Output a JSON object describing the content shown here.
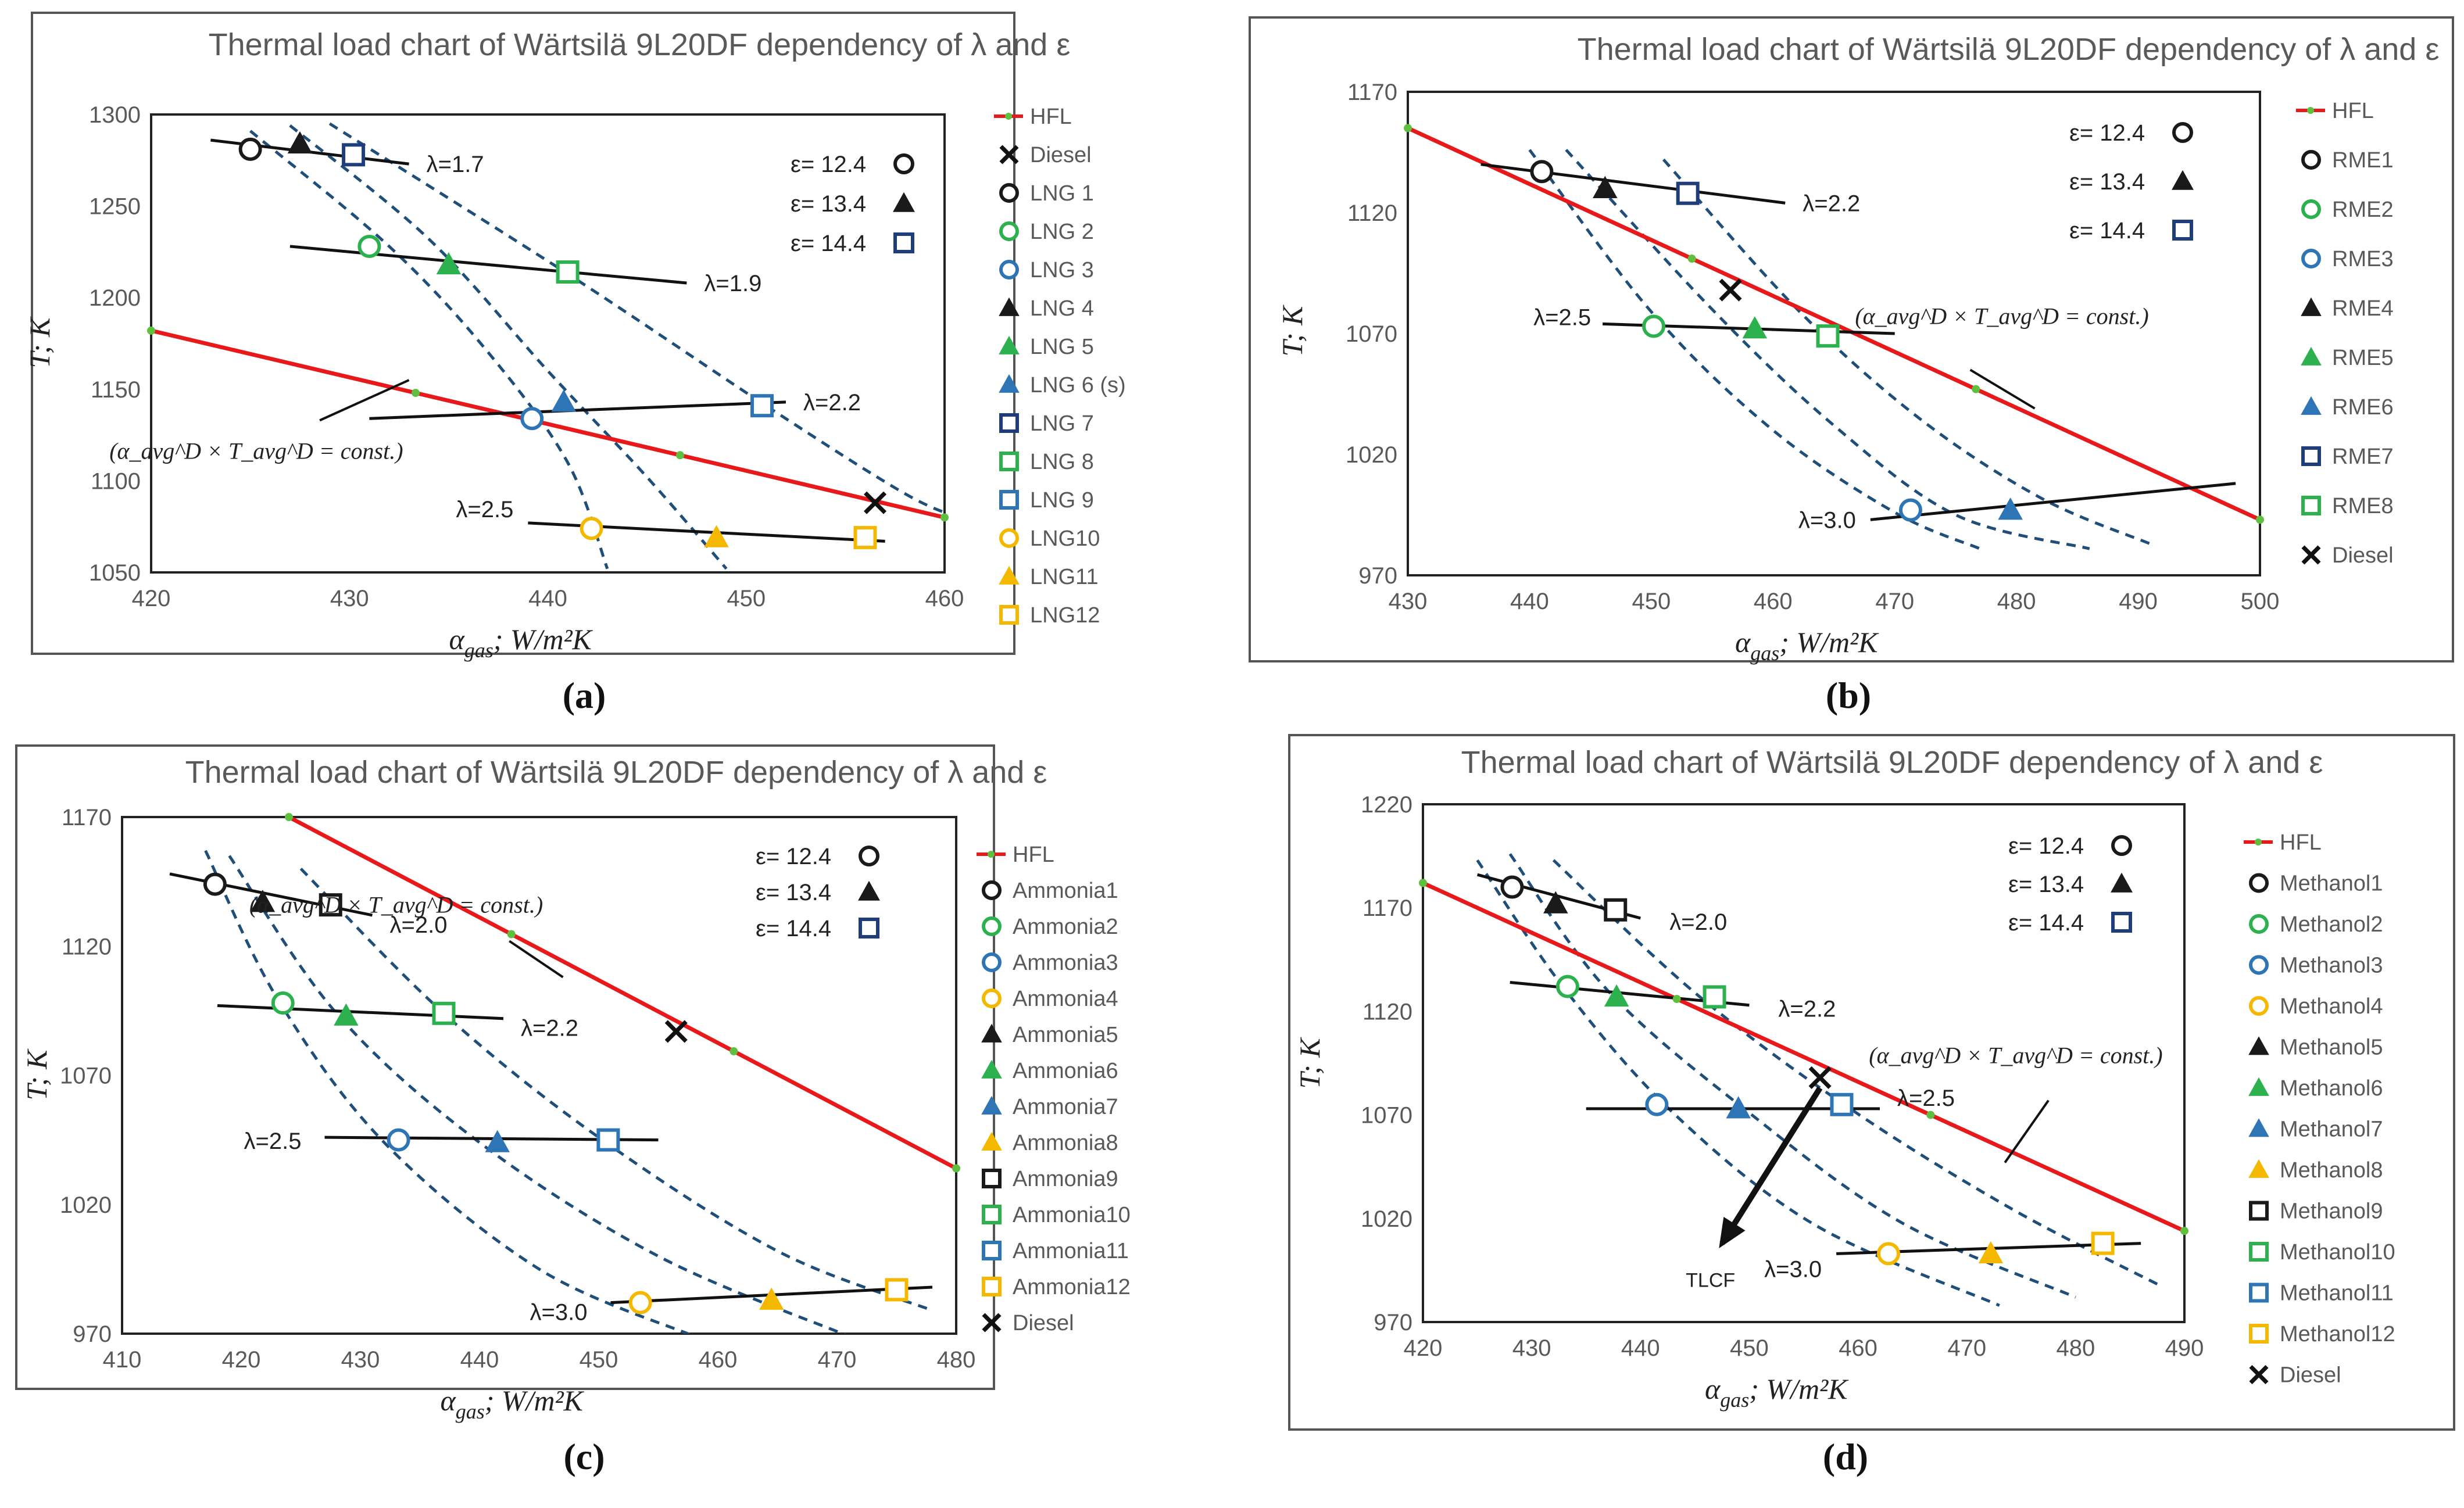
{
  "chart_data": [
    {
      "type": "scatter",
      "panel": "a",
      "caption": "(a)",
      "title": "Thermal load chart of Wärtsilä 9L20DF dependency of λ and ε",
      "xlabel": "α_gas; W/m²K",
      "ylabel": "T; K",
      "xlim": [
        420,
        460
      ],
      "ylim": [
        1050,
        1300
      ],
      "xticks": [
        "420",
        "430",
        "440",
        "450",
        "460"
      ],
      "yticks": [
        "1050",
        "1100",
        "1150",
        "1200",
        "1250",
        "1300"
      ],
      "hfl": {
        "name": "HFL",
        "x": [
          420,
          460
        ],
        "y": [
          1182,
          1080
        ]
      },
      "hfl_label": "(α_avg^D × T_avg^D = const.)",
      "curves": [
        [
          [
            425,
            1291
          ],
          [
            432,
            1228
          ],
          [
            437,
            1170
          ],
          [
            441,
            1110
          ],
          [
            443,
            1052
          ]
        ],
        [
          [
            427,
            1294
          ],
          [
            434,
            1232
          ],
          [
            440,
            1160
          ],
          [
            445,
            1102
          ],
          [
            449,
            1052
          ]
        ],
        [
          [
            429,
            1295
          ],
          [
            441,
            1213
          ],
          [
            451,
            1141
          ],
          [
            458,
            1093
          ],
          [
            461,
            1079
          ]
        ]
      ],
      "lambda_lines": [
        {
          "label": "λ=1.7",
          "from": [
            423,
            1286
          ],
          "to": [
            433,
            1273
          ]
        },
        {
          "label": "λ=1.9",
          "from": [
            427,
            1228
          ],
          "to": [
            447,
            1208
          ]
        },
        {
          "label": "λ=2.2",
          "from": [
            431,
            1134
          ],
          "to": [
            452,
            1143
          ]
        },
        {
          "label": "λ=2.5",
          "from": [
            439,
            1077
          ],
          "to": [
            457,
            1067
          ]
        }
      ],
      "points": [
        {
          "name": "LNG 1",
          "x": 425,
          "y": 1281,
          "marker": "circle",
          "color": "#1a1a1a"
        },
        {
          "name": "LNG 2",
          "x": 431,
          "y": 1228,
          "marker": "circle",
          "color": "#2db14f"
        },
        {
          "name": "LNG 3",
          "x": 439.2,
          "y": 1134,
          "marker": "circle",
          "color": "#2e75b6"
        },
        {
          "name": "LNG 4",
          "x": 427.5,
          "y": 1284,
          "marker": "triangle",
          "color": "#1a1a1a"
        },
        {
          "name": "LNG 5",
          "x": 435,
          "y": 1218,
          "marker": "triangle",
          "color": "#2db14f"
        },
        {
          "name": "LNG 6 (s)",
          "x": 440.8,
          "y": 1143,
          "marker": "triangle",
          "color": "#2e75b6"
        },
        {
          "name": "LNG 7",
          "x": 430.2,
          "y": 1278,
          "marker": "square",
          "color": "#1f3d7a"
        },
        {
          "name": "LNG 8",
          "x": 441,
          "y": 1214,
          "marker": "square",
          "color": "#2db14f"
        },
        {
          "name": "LNG 9",
          "x": 450.8,
          "y": 1141,
          "marker": "square",
          "color": "#2e75b6"
        },
        {
          "name": "LNG10",
          "x": 442.2,
          "y": 1074,
          "marker": "circle",
          "color": "#f5b800"
        },
        {
          "name": "LNG11",
          "x": 448.5,
          "y": 1069,
          "marker": "triangle",
          "color": "#f5b800"
        },
        {
          "name": "LNG12",
          "x": 456,
          "y": 1069,
          "marker": "square",
          "color": "#f5b800"
        },
        {
          "name": "Diesel",
          "x": 456.5,
          "y": 1088,
          "marker": "cross",
          "color": "#111111"
        }
      ],
      "eps_legend": [
        "ε= 12.4",
        "ε= 13.4",
        "ε= 14.4"
      ],
      "legend_order": [
        "HFL",
        "Diesel",
        "LNG 1",
        "LNG 2",
        "LNG 3",
        "LNG 4",
        "LNG 5",
        "LNG 6 (s)",
        "LNG 7",
        "LNG 8",
        "LNG 9",
        "LNG10",
        "LNG11",
        "LNG12"
      ]
    },
    {
      "type": "scatter",
      "panel": "b",
      "caption": "(b)",
      "title": "Thermal load chart of Wärtsilä 9L20DF dependency of λ and ε",
      "xlabel": "α_gas; W/m²K",
      "ylabel": "T; K",
      "xlim": [
        430,
        500
      ],
      "ylim": [
        970,
        1170
      ],
      "xticks": [
        "430",
        "440",
        "450",
        "460",
        "470",
        "480",
        "490",
        "500"
      ],
      "yticks": [
        "970",
        "1020",
        "1070",
        "1120",
        "1170"
      ],
      "hfl": {
        "name": "HFL",
        "x": [
          430,
          500
        ],
        "y": [
          1155,
          993
        ]
      },
      "hfl_label": "(α_avg^D × T_avg^D = const.)",
      "curves": [
        [
          [
            440,
            1146
          ],
          [
            450,
            1079
          ],
          [
            460,
            1030
          ],
          [
            470,
            996
          ],
          [
            477,
            981
          ]
        ],
        [
          [
            443,
            1146
          ],
          [
            455,
            1080
          ],
          [
            465,
            1032
          ],
          [
            475,
            995
          ],
          [
            486,
            981
          ]
        ],
        [
          [
            451,
            1142
          ],
          [
            462,
            1080
          ],
          [
            472,
            1035
          ],
          [
            482,
            1002
          ],
          [
            491,
            983
          ]
        ]
      ],
      "lambda_lines": [
        {
          "label": "λ=2.2",
          "from": [
            436,
            1140
          ],
          "to": [
            461,
            1124
          ]
        },
        {
          "label": "λ=2.5",
          "from": [
            446,
            1074
          ],
          "to": [
            470,
            1070
          ]
        },
        {
          "label": "λ=3.0",
          "from": [
            468,
            993
          ],
          "to": [
            498,
            1008
          ]
        }
      ],
      "points": [
        {
          "name": "RME1",
          "x": 441,
          "y": 1137,
          "marker": "circle",
          "color": "#1a1a1a"
        },
        {
          "name": "RME2",
          "x": 450.2,
          "y": 1073,
          "marker": "circle",
          "color": "#2db14f"
        },
        {
          "name": "RME3",
          "x": 471.3,
          "y": 997,
          "marker": "circle",
          "color": "#2e75b6"
        },
        {
          "name": "RME4",
          "x": 446.2,
          "y": 1130,
          "marker": "triangle",
          "color": "#1a1a1a"
        },
        {
          "name": "RME5",
          "x": 458.5,
          "y": 1072,
          "marker": "triangle",
          "color": "#2db14f"
        },
        {
          "name": "RME6",
          "x": 479.5,
          "y": 997,
          "marker": "triangle",
          "color": "#2e75b6"
        },
        {
          "name": "RME7",
          "x": 453,
          "y": 1128,
          "marker": "square",
          "color": "#1f3d7a"
        },
        {
          "name": "RME8",
          "x": 464.5,
          "y": 1069,
          "marker": "square",
          "color": "#2db14f"
        },
        {
          "name": "Diesel",
          "x": 456.5,
          "y": 1088,
          "marker": "cross",
          "color": "#111111"
        }
      ],
      "eps_legend": [
        "ε= 12.4",
        "ε= 13.4",
        "ε= 14.4"
      ],
      "legend_order": [
        "HFL",
        "RME1",
        "RME2",
        "RME3",
        "RME4",
        "RME5",
        "RME6",
        "RME7",
        "RME8",
        "Diesel"
      ]
    },
    {
      "type": "scatter",
      "panel": "c",
      "caption": "(c)",
      "title": "Thermal load chart of Wärtsilä 9L20DF dependency of λ and ε",
      "xlabel": "α_gas; W/m²K",
      "ylabel": "T; K",
      "xlim": [
        410,
        480
      ],
      "ylim": [
        970,
        1170
      ],
      "xticks": [
        "410",
        "420",
        "430",
        "440",
        "450",
        "460",
        "470",
        "480"
      ],
      "yticks": [
        "970",
        "1020",
        "1070",
        "1120",
        "1170"
      ],
      "hfl": {
        "name": "HFL",
        "x": [
          424,
          480
        ],
        "y": [
          1170,
          1034
        ]
      },
      "hfl_label": "(α_avg^D × T_avg^D = const.)",
      "curves": [
        [
          [
            417,
            1157
          ],
          [
            423,
            1100
          ],
          [
            432,
            1044
          ],
          [
            445,
            995
          ],
          [
            458,
            969
          ]
        ],
        [
          [
            419,
            1155
          ],
          [
            428,
            1094
          ],
          [
            440,
            1044
          ],
          [
            455,
            1000
          ],
          [
            471,
            969
          ]
        ],
        [
          [
            425,
            1150
          ],
          [
            437,
            1094
          ],
          [
            450,
            1046
          ],
          [
            465,
            1002
          ],
          [
            478,
            979
          ]
        ]
      ],
      "lambda_lines": [
        {
          "label": "λ=2.0",
          "from": [
            414,
            1148
          ],
          "to": [
            431,
            1132
          ]
        },
        {
          "label": "λ=2.2",
          "from": [
            418,
            1097
          ],
          "to": [
            442,
            1092
          ]
        },
        {
          "label": "λ=2.5",
          "from": [
            427,
            1046
          ],
          "to": [
            455,
            1045
          ]
        },
        {
          "label": "λ=3.0",
          "from": [
            451,
            982
          ],
          "to": [
            478,
            988
          ]
        }
      ],
      "points": [
        {
          "name": "Ammonia1",
          "x": 417.8,
          "y": 1144,
          "marker": "circle",
          "color": "#1a1a1a"
        },
        {
          "name": "Ammonia2",
          "x": 423.5,
          "y": 1098,
          "marker": "circle",
          "color": "#2db14f"
        },
        {
          "name": "Ammonia3",
          "x": 433.2,
          "y": 1045,
          "marker": "circle",
          "color": "#2e75b6"
        },
        {
          "name": "Ammonia4",
          "x": 453.5,
          "y": 982,
          "marker": "circle",
          "color": "#f5b800"
        },
        {
          "name": "Ammonia5",
          "x": 421.8,
          "y": 1137,
          "marker": "triangle",
          "color": "#1a1a1a"
        },
        {
          "name": "Ammonia6",
          "x": 428.8,
          "y": 1093,
          "marker": "triangle",
          "color": "#2db14f"
        },
        {
          "name": "Ammonia7",
          "x": 441.5,
          "y": 1044,
          "marker": "triangle",
          "color": "#2e75b6"
        },
        {
          "name": "Ammonia8",
          "x": 464.5,
          "y": 983,
          "marker": "triangle",
          "color": "#f5b800"
        },
        {
          "name": "Ammonia9",
          "x": 427.5,
          "y": 1136,
          "marker": "square",
          "color": "#1a1a1a"
        },
        {
          "name": "Ammonia10",
          "x": 437,
          "y": 1094,
          "marker": "square",
          "color": "#2db14f"
        },
        {
          "name": "Ammonia11",
          "x": 450.8,
          "y": 1045,
          "marker": "square",
          "color": "#2e75b6"
        },
        {
          "name": "Ammonia12",
          "x": 475,
          "y": 987,
          "marker": "square",
          "color": "#f5b800"
        },
        {
          "name": "Diesel",
          "x": 456.5,
          "y": 1087,
          "marker": "cross",
          "color": "#111111"
        }
      ],
      "eps_legend": [
        "ε= 12.4",
        "ε= 13.4",
        "ε= 14.4"
      ],
      "legend_order": [
        "HFL",
        "Ammonia1",
        "Ammonia2",
        "Ammonia3",
        "Ammonia4",
        "Ammonia5",
        "Ammonia6",
        "Ammonia7",
        "Ammonia8",
        "Ammonia9",
        "Ammonia10",
        "Ammonia11",
        "Ammonia12",
        "Diesel"
      ]
    },
    {
      "type": "scatter",
      "panel": "d",
      "caption": "(d)",
      "title": "Thermal load chart of Wärtsilä 9L20DF dependency of λ and ε",
      "xlabel": "α_gas; W/m²K",
      "ylabel": "T; K",
      "xlim": [
        420,
        490
      ],
      "ylim": [
        970,
        1220
      ],
      "xticks": [
        "420",
        "430",
        "440",
        "450",
        "460",
        "470",
        "480",
        "490"
      ],
      "yticks": [
        "970",
        "1020",
        "1070",
        "1120",
        "1170",
        "1220"
      ],
      "hfl": {
        "name": "HFL",
        "x": [
          420,
          490
        ],
        "y": [
          1182,
          1014
        ]
      },
      "hfl_label": "(α_avg^D × T_avg^D = const.)",
      "curves": [
        [
          [
            425,
            1193
          ],
          [
            433,
            1131
          ],
          [
            443,
            1071
          ],
          [
            456,
            1017
          ],
          [
            473,
            978
          ]
        ],
        [
          [
            428,
            1196
          ],
          [
            437,
            1130
          ],
          [
            450,
            1071
          ],
          [
            464,
            1018
          ],
          [
            480,
            982
          ]
        ],
        [
          [
            432,
            1193
          ],
          [
            445,
            1129
          ],
          [
            459,
            1074
          ],
          [
            474,
            1025
          ],
          [
            488,
            987
          ]
        ]
      ],
      "lambda_lines": [
        {
          "label": "λ=2.0",
          "from": [
            425,
            1186
          ],
          "to": [
            440,
            1165
          ]
        },
        {
          "label": "λ=2.2",
          "from": [
            428,
            1134
          ],
          "to": [
            450,
            1123
          ]
        },
        {
          "label": "λ=2.5",
          "from": [
            435,
            1073
          ],
          "to": [
            462,
            1073
          ]
        },
        {
          "label": "λ=3.0",
          "from": [
            458,
            1003
          ],
          "to": [
            486,
            1008
          ]
        }
      ],
      "points": [
        {
          "name": "Methanol1",
          "x": 428.2,
          "y": 1180,
          "marker": "circle",
          "color": "#1a1a1a"
        },
        {
          "name": "Methanol2",
          "x": 433.3,
          "y": 1132,
          "marker": "circle",
          "color": "#2db14f"
        },
        {
          "name": "Methanol3",
          "x": 441.5,
          "y": 1075,
          "marker": "circle",
          "color": "#2e75b6"
        },
        {
          "name": "Methanol4",
          "x": 462.8,
          "y": 1003,
          "marker": "circle",
          "color": "#f5b800"
        },
        {
          "name": "Methanol5",
          "x": 432.2,
          "y": 1172,
          "marker": "triangle",
          "color": "#1a1a1a"
        },
        {
          "name": "Methanol6",
          "x": 437.8,
          "y": 1127,
          "marker": "triangle",
          "color": "#2db14f"
        },
        {
          "name": "Methanol7",
          "x": 449,
          "y": 1073,
          "marker": "triangle",
          "color": "#2e75b6"
        },
        {
          "name": "Methanol8",
          "x": 472.2,
          "y": 1003,
          "marker": "triangle",
          "color": "#f5b800"
        },
        {
          "name": "Methanol9",
          "x": 437.7,
          "y": 1169,
          "marker": "square",
          "color": "#1a1a1a"
        },
        {
          "name": "Methanol10",
          "x": 446.8,
          "y": 1127,
          "marker": "square",
          "color": "#2db14f"
        },
        {
          "name": "Methanol11",
          "x": 458.5,
          "y": 1075,
          "marker": "square",
          "color": "#2e75b6"
        },
        {
          "name": "Methanol12",
          "x": 482.5,
          "y": 1008,
          "marker": "square",
          "color": "#f5b800"
        },
        {
          "name": "Diesel",
          "x": 456.5,
          "y": 1088,
          "marker": "cross",
          "color": "#111111"
        }
      ],
      "tlcf": {
        "label": "TLCF",
        "from": [
          456.5,
          1083
        ],
        "to": [
          447.5,
          1008
        ]
      },
      "eps_legend": [
        "ε= 12.4",
        "ε= 13.4",
        "ε= 14.4"
      ],
      "legend_order": [
        "HFL",
        "Methanol1",
        "Methanol2",
        "Methanol3",
        "Methanol4",
        "Methanol5",
        "Methanol6",
        "Methanol7",
        "Methanol8",
        "Methanol9",
        "Methanol10",
        "Methanol11",
        "Methanol12",
        "Diesel"
      ]
    }
  ],
  "colors": {
    "hfl": "#e8191b",
    "hfl_marker": "#5fbf3f",
    "curve": "#1f4e79",
    "lambda_line": "#111111",
    "tick_text": "#595959"
  }
}
